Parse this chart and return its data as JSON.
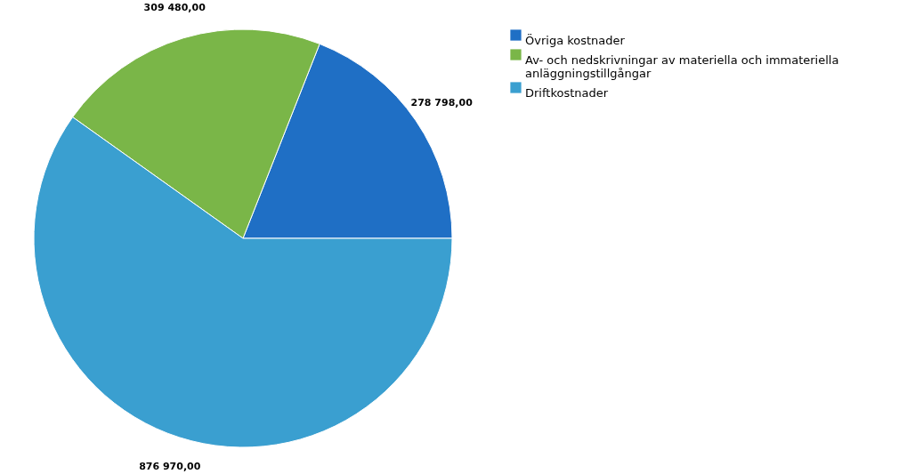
{
  "chart_data": {
    "type": "pie",
    "categories": [
      "Övriga kostnader",
      "Av- och nedskrivningar av materiella och immateriella anläggningstillgångar",
      "Driftkostnader"
    ],
    "values": [
      278798,
      309480,
      876970
    ],
    "colors": [
      "#1f6fc5",
      "#7ab648",
      "#3a9fd0"
    ],
    "value_labels": [
      "278 798,00",
      "309 480,00",
      "876 970,00"
    ],
    "legend": "right"
  }
}
